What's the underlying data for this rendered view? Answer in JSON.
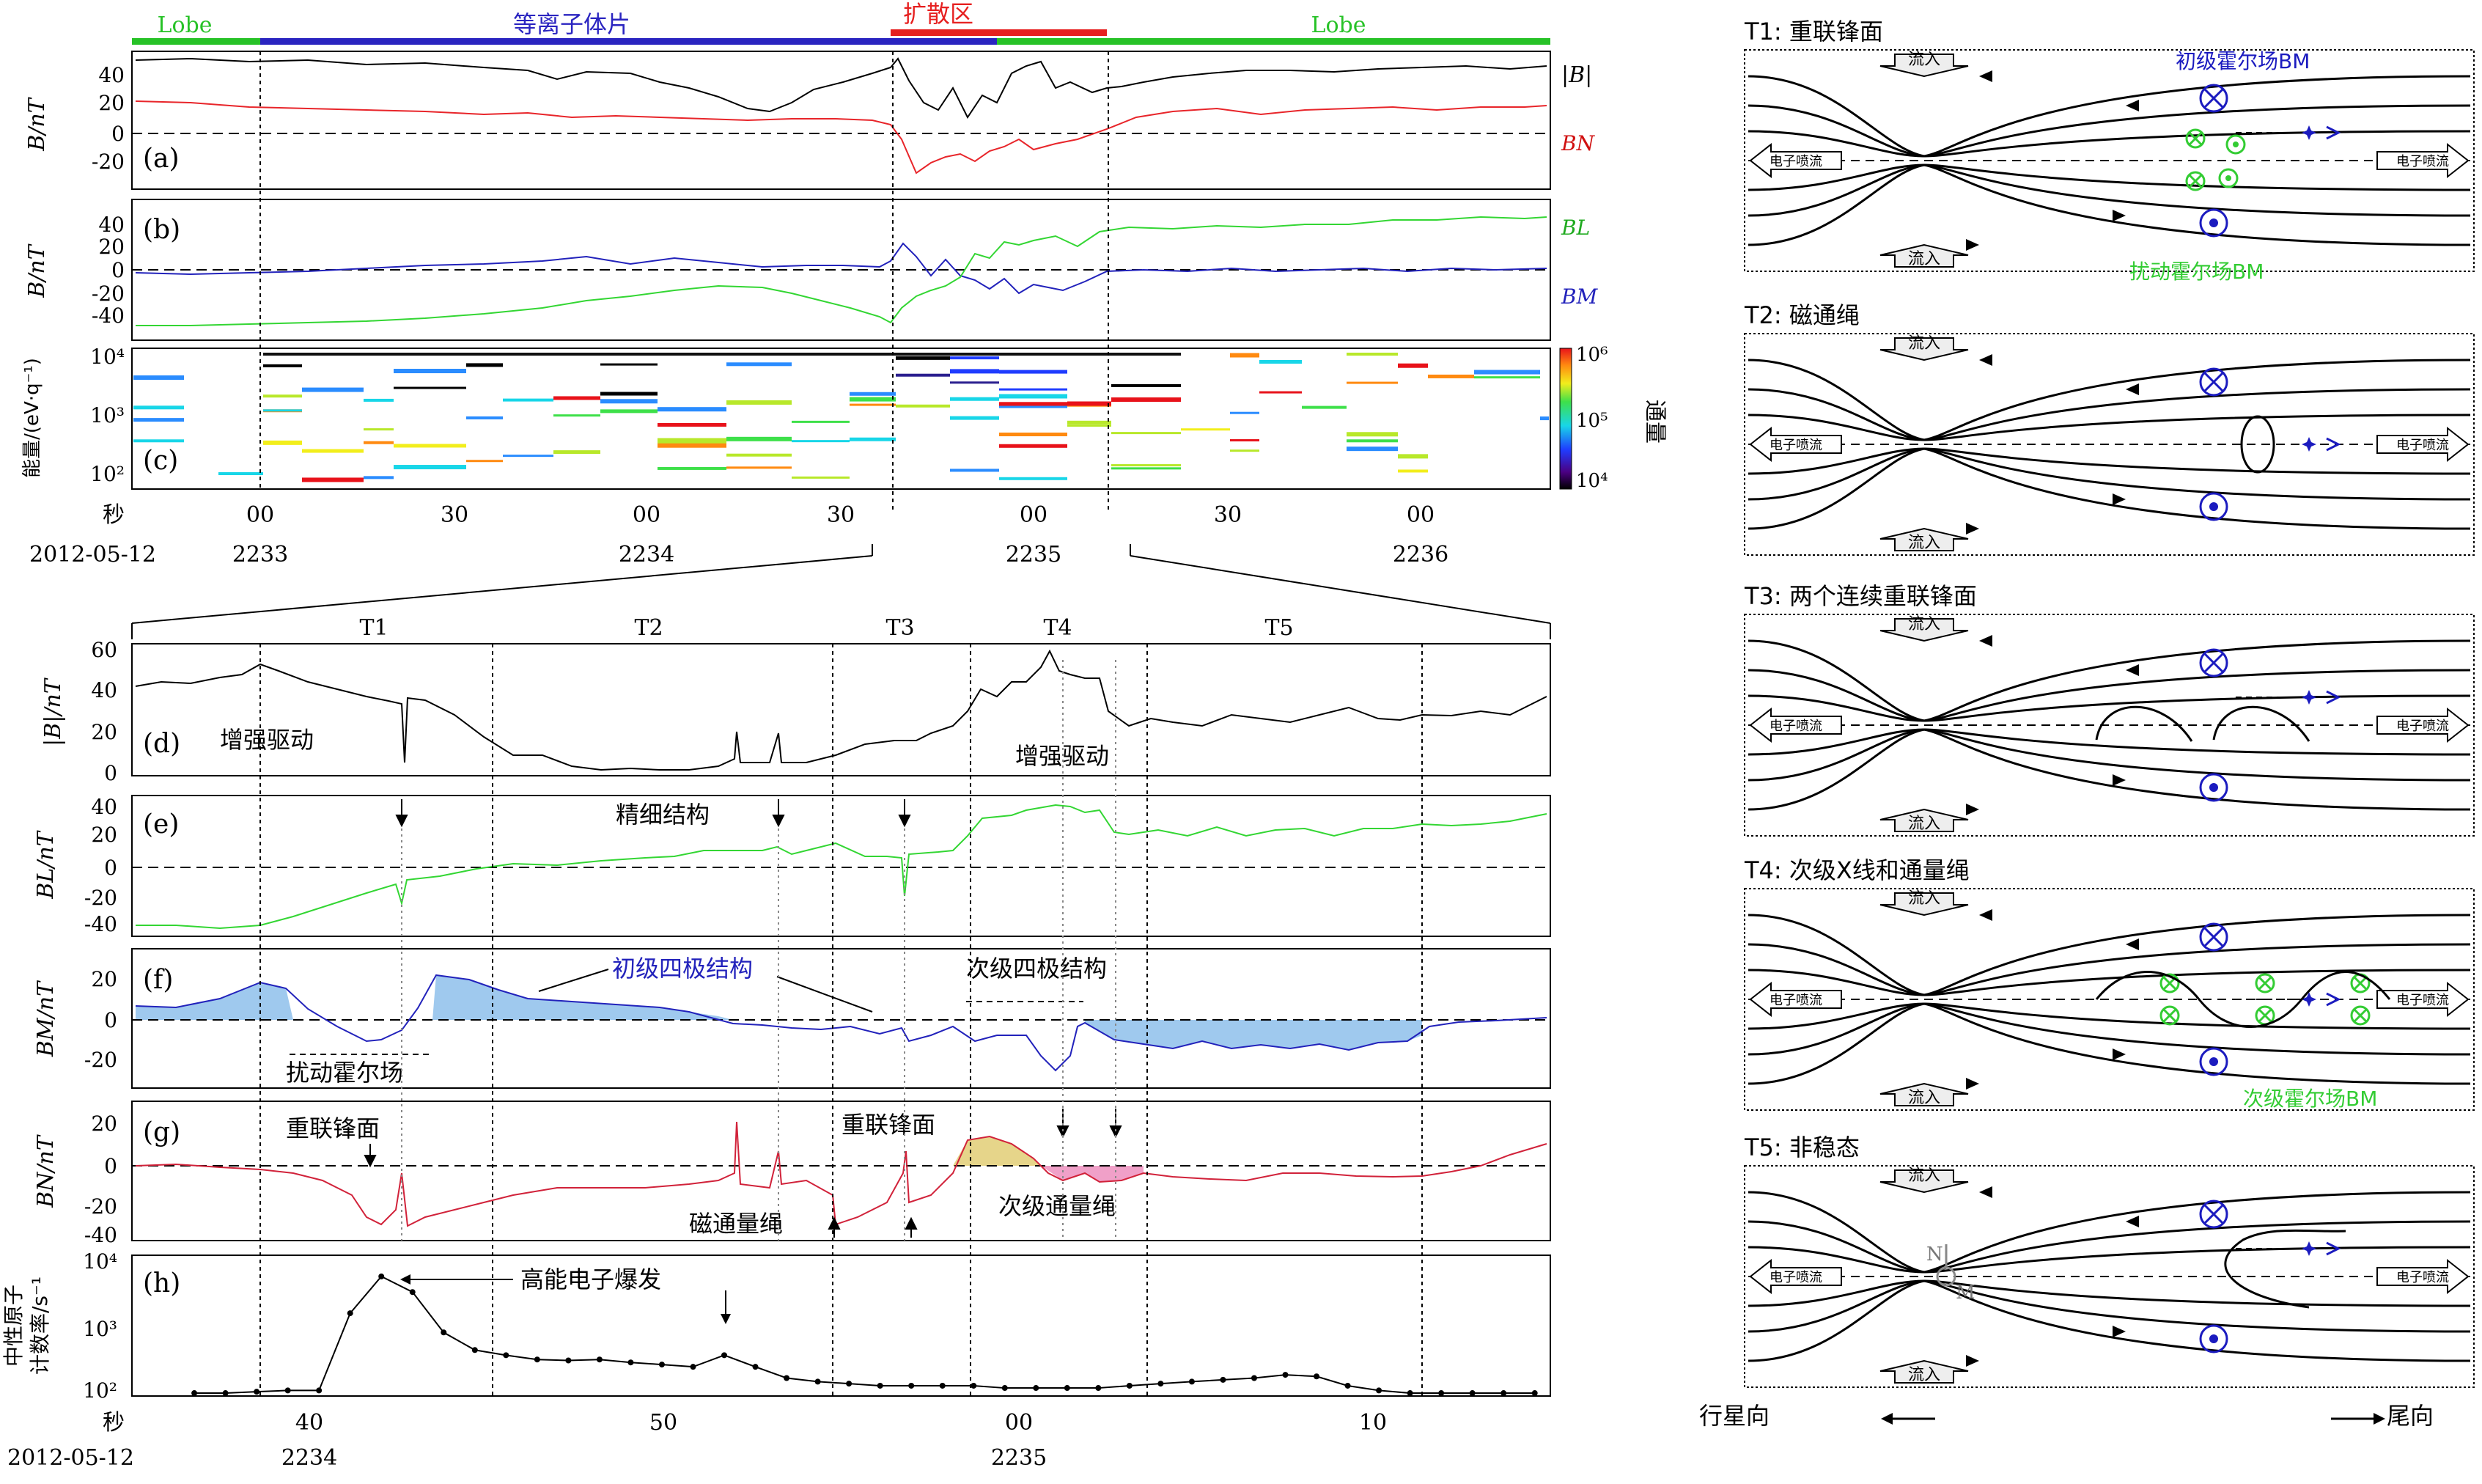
{
  "colors": {
    "lobe": "#27c227",
    "plasma_sheet": "#2a24c0",
    "diffusion": "#e62020",
    "total_field": "#000000",
    "bn": "#e8252a",
    "bl": "#33d633",
    "bm": "#2222bb",
    "bm_fill": "#9fc9ee",
    "flux_rope_fill_pos": "#e6d58a",
    "flux_rope_fill_neg": "#f0a0c8",
    "inset_blue": "#1b1bbf",
    "inset_green": "#33cc33"
  },
  "top_bar": {
    "lobe_left": "Lobe",
    "plasma_sheet": "等离子体片",
    "diffusion": "扩散区",
    "lobe_right": "Lobe"
  },
  "panels": {
    "a": {
      "tag": "(a)",
      "ylabel": "B/nT",
      "legend_total": "|B|",
      "legend_bn": "BN",
      "ticks": [
        "40",
        "20",
        "0",
        "-20"
      ]
    },
    "b": {
      "tag": "(b)",
      "ylabel": "B/nT",
      "legend_bl": "BL",
      "legend_bm": "BM",
      "ticks": [
        "40",
        "20",
        "0",
        "-20",
        "-40"
      ]
    },
    "c": {
      "tag": "(c)",
      "ylabel": "能量/(eV·q⁻¹)",
      "ticks": [
        "10⁴",
        "10³",
        "10²"
      ],
      "cbar_label": "通量",
      "cbar_ticks": [
        "10⁶",
        "10⁵",
        "10⁴"
      ]
    },
    "d": {
      "tag": "(d)",
      "ylabel": "|B|/nT",
      "ticks": [
        "60",
        "40",
        "20",
        "0"
      ],
      "annot_left": "增强驱动",
      "annot_right": "增强驱动"
    },
    "e": {
      "tag": "(e)",
      "ylabel": "BL/nT",
      "ticks": [
        "40",
        "20",
        "0",
        "-20",
        "-40"
      ],
      "annot": "精细结构"
    },
    "f": {
      "tag": "(f)",
      "ylabel": "BM/nT",
      "ticks": [
        "20",
        "0",
        "-20"
      ],
      "annot_primary": "初级四极结构",
      "annot_secondary": "次级四极结构",
      "annot_disturb": "扰动霍尔场"
    },
    "g": {
      "tag": "(g)",
      "ylabel": "BN/nT",
      "ticks": [
        "20",
        "0",
        "-20",
        "-40"
      ],
      "annot_front1": "重联锋面",
      "annot_front2": "重联锋面",
      "annot_rope": "磁通量绳",
      "annot_secondary_rope": "次级通量绳"
    },
    "h": {
      "tag": "(h)",
      "ylabel1": "中性原子",
      "ylabel2": "计数率/s⁻¹",
      "ticks": [
        "10⁴",
        "10³",
        "10²"
      ],
      "annot": "高能电子爆发"
    }
  },
  "time_axis_top": {
    "sec_label": "秒",
    "date_label": "2012-05-12",
    "sec_ticks": [
      "00",
      "30",
      "00",
      "30",
      "00",
      "30",
      "00"
    ],
    "minute_ticks": [
      "2233",
      "2234",
      "2235",
      "2236"
    ]
  },
  "time_axis_bottom": {
    "sec_label": "秒",
    "date_label": "2012-05-12",
    "sec_ticks": [
      "40",
      "50",
      "00",
      "10"
    ],
    "minute_ticks": [
      "2234",
      "2235"
    ]
  },
  "intervals": [
    "T1",
    "T2",
    "T3",
    "T4",
    "T5"
  ],
  "chart_data": {
    "type": "line",
    "panel_h_counts": {
      "x_seconds_after_2234_30": [
        5,
        6,
        7,
        8,
        9,
        10,
        11,
        12,
        13,
        14,
        15,
        16,
        17,
        18,
        19,
        20,
        21,
        22,
        23,
        24,
        25,
        26,
        27,
        28,
        29,
        30,
        31,
        32,
        33,
        34,
        35,
        36,
        37,
        38,
        39,
        40,
        41,
        42,
        43,
        44,
        45,
        46,
        47,
        48
      ],
      "values": [
        110,
        110,
        115,
        120,
        120,
        1500,
        5000,
        3000,
        800,
        450,
        380,
        330,
        320,
        330,
        300,
        280,
        260,
        380,
        260,
        180,
        160,
        150,
        140,
        140,
        140,
        140,
        130,
        130,
        130,
        130,
        140,
        150,
        160,
        170,
        180,
        200,
        190,
        140,
        120,
        110,
        110,
        110,
        110,
        110
      ],
      "ylim": [
        100,
        10000
      ],
      "yscale": "log"
    }
  },
  "schematic": {
    "titles": [
      "T1: 重联锋面",
      "T2: 磁通绳",
      "T3: 两个连续重联锋面",
      "T4: 次级X线和通量绳",
      "T5: 非稳态"
    ],
    "inflow": "流入",
    "jet_left": "电子喷流",
    "jet_right": "电子喷流",
    "primary_hall": "初级霍尔场BM",
    "disturbed_hall": "扰动霍尔场BM",
    "secondary_hall": "次级霍尔场BM",
    "axis_n": "N",
    "axis_m": "M",
    "planetward": "行星向",
    "tailward": "尾向"
  }
}
